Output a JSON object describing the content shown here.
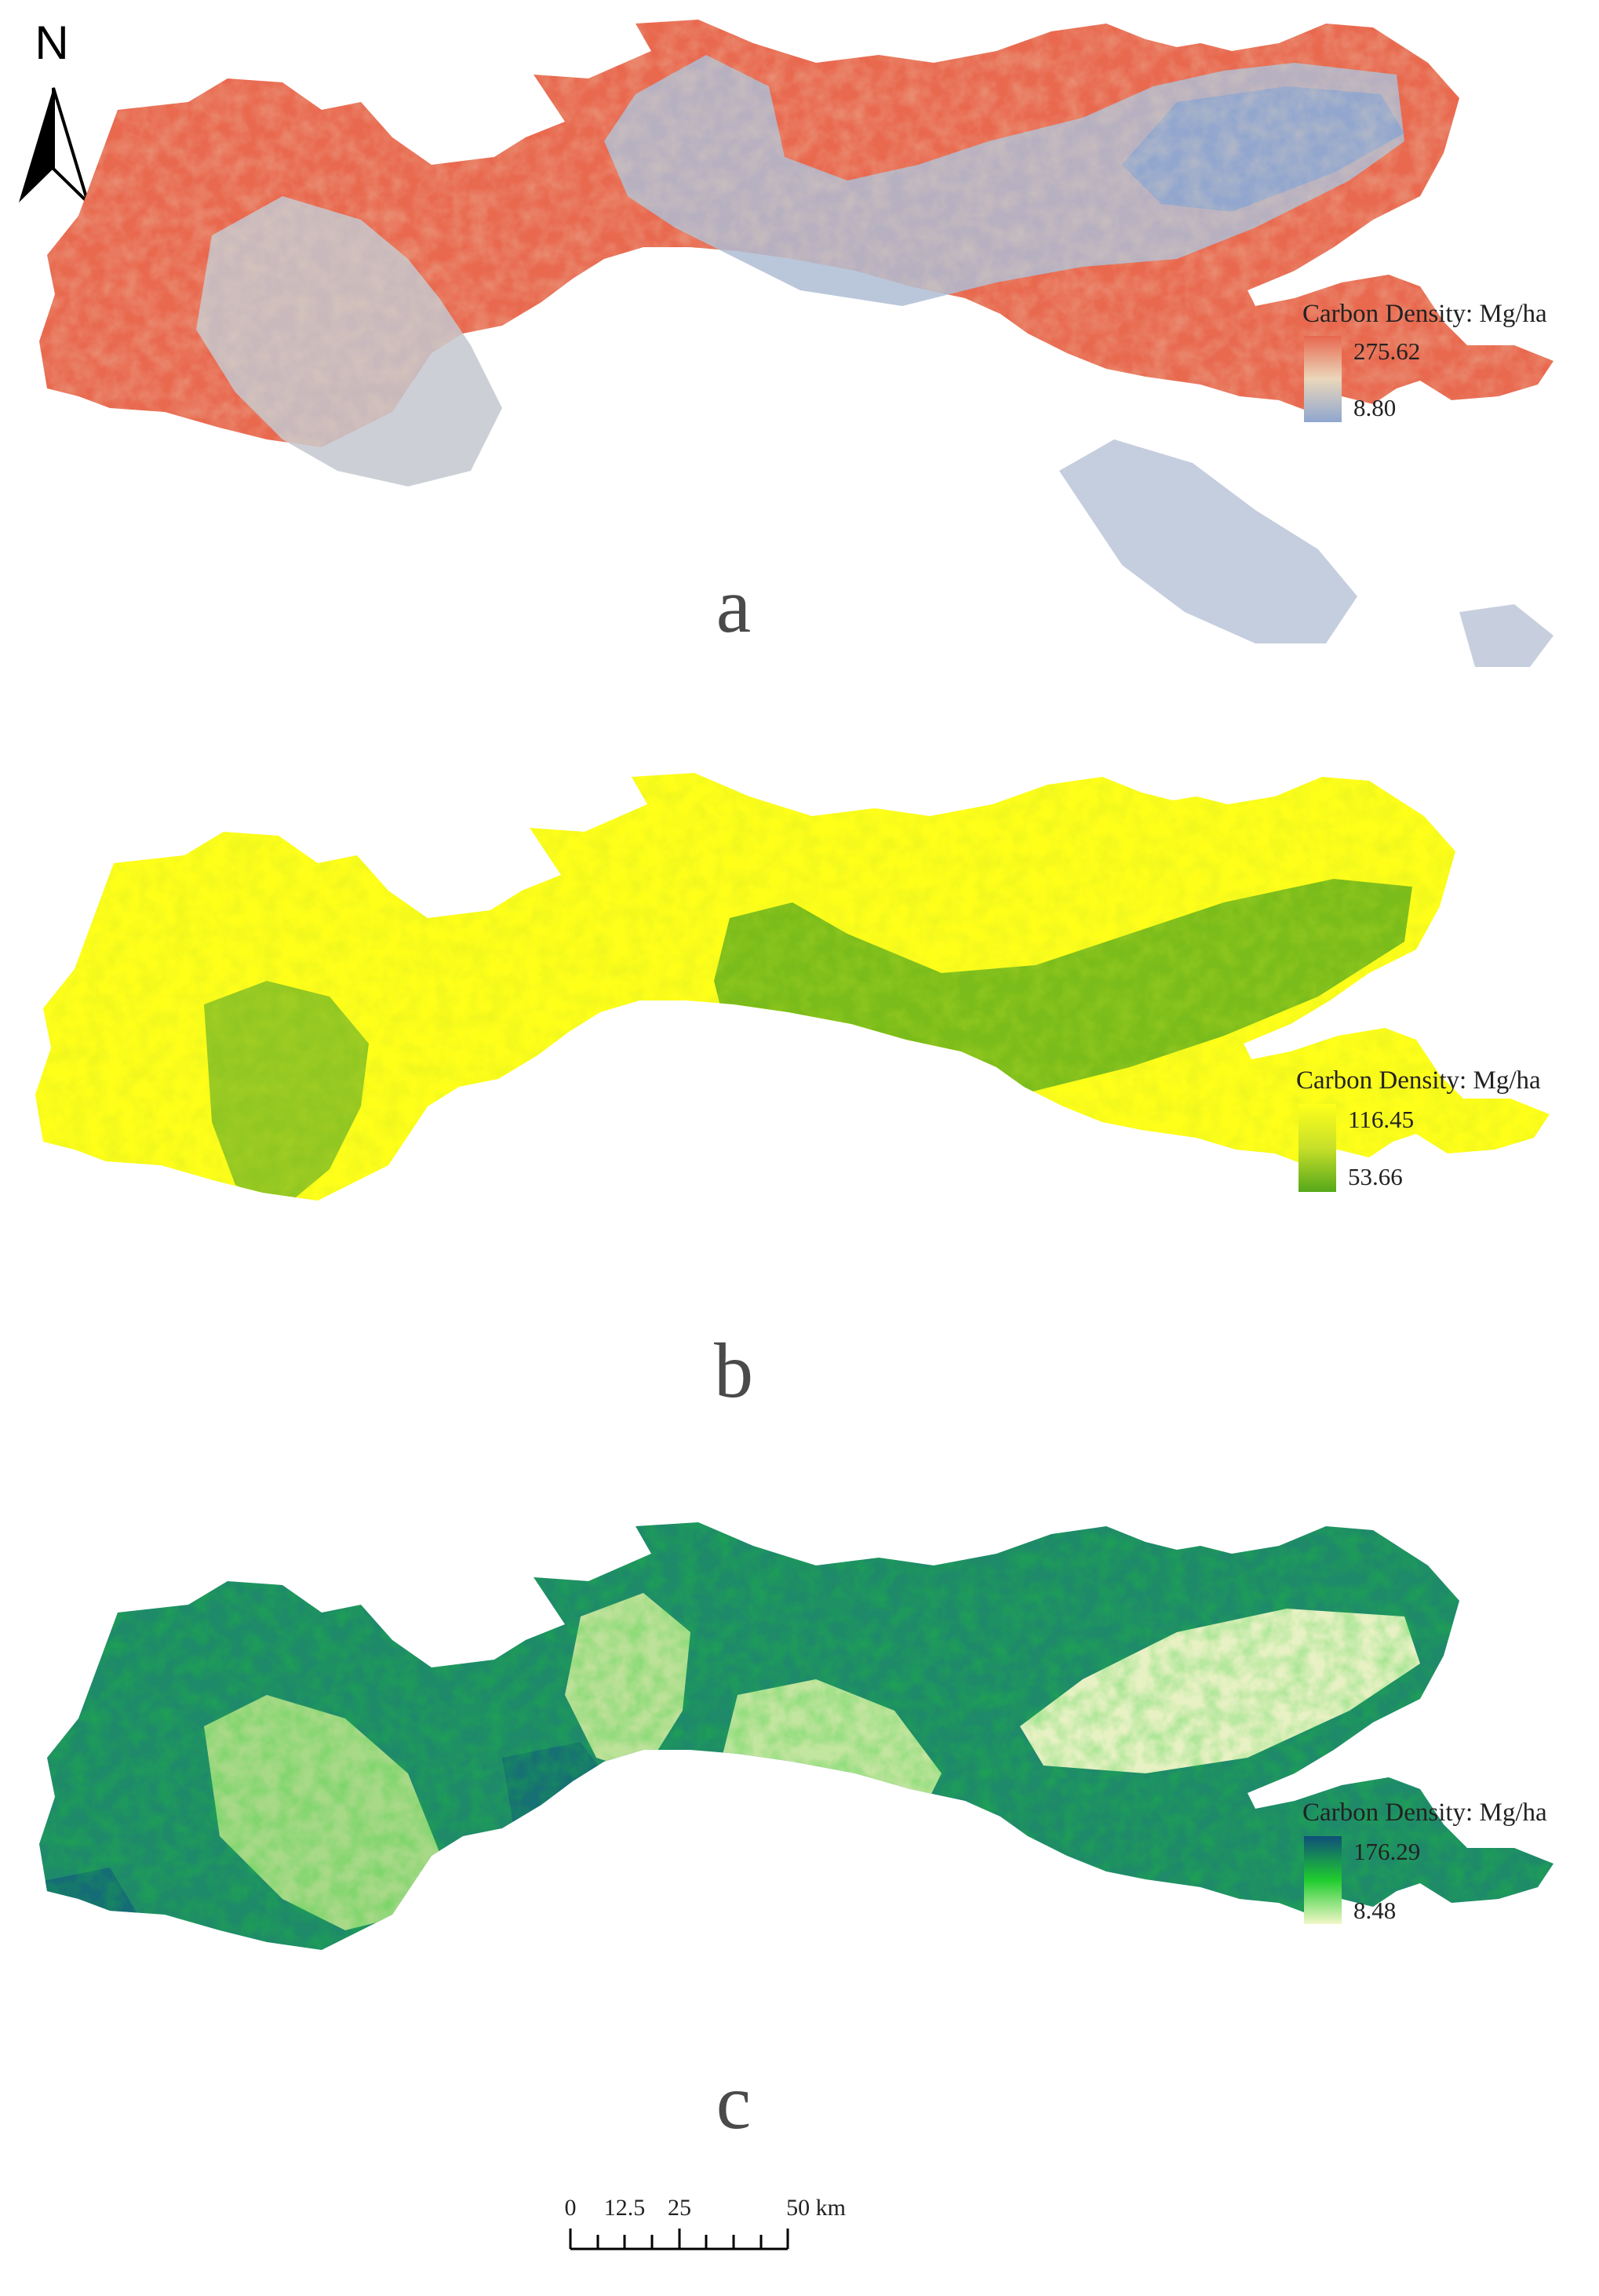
{
  "north_arrow": {
    "label": "N"
  },
  "panels": [
    {
      "letter": "a",
      "legend": {
        "title": "Carbon Density: Mg/ha",
        "max": "275.62",
        "min": "8.80"
      },
      "colors": {
        "high": "#e8684f",
        "mid": "#ead7bb",
        "low": "#8fa6cf"
      }
    },
    {
      "letter": "b",
      "legend": {
        "title": "Carbon Density: Mg/ha",
        "max": "116.45",
        "min": "53.66"
      },
      "colors": {
        "high": "#ffff1a",
        "mid": "#c7e02a",
        "low": "#55a81a"
      }
    },
    {
      "letter": "c",
      "legend": {
        "title": "Carbon Density: Mg/ha",
        "max": "176.29",
        "min": "8.48"
      },
      "colors": {
        "high": "#0f4f7a",
        "mid": "#1fcc2e",
        "low": "#f2f7c8"
      }
    }
  ],
  "scale_bar": {
    "ticks": [
      "0",
      "12.5",
      "25",
      "50 km"
    ]
  }
}
